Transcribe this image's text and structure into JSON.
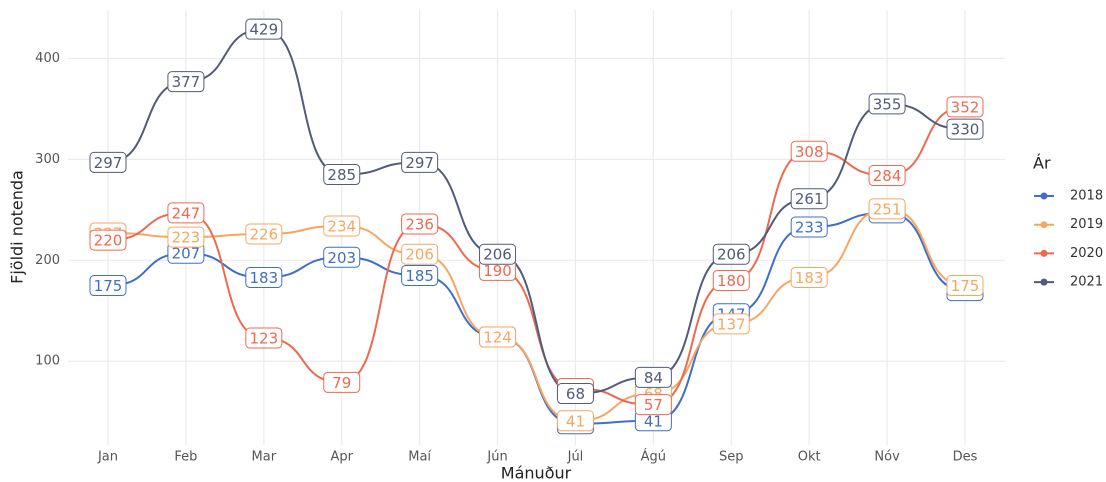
{
  "chart_data": {
    "type": "line",
    "x_label": "Mánuður",
    "y_label": "Fjöldi notenda",
    "legend_title": "Ár",
    "categories": [
      "Jan",
      "Feb",
      "Mar",
      "Apr",
      "Maí",
      "Jún",
      "Júl",
      "Ágú",
      "Sep",
      "Okt",
      "Nóv",
      "Des"
    ],
    "series": [
      {
        "name": "2018",
        "color": "#3f6fc8",
        "values": [
          175,
          207,
          183,
          203,
          185,
          124,
          38,
          41,
          147,
          233,
          247,
          170
        ]
      },
      {
        "name": "2019",
        "color": "#f7a661",
        "values": [
          227,
          223,
          226,
          234,
          206,
          124,
          41,
          68,
          137,
          183,
          251,
          175
        ]
      },
      {
        "name": "2020",
        "color": "#ec6a50",
        "values": [
          220,
          247,
          123,
          79,
          236,
          190,
          73,
          57,
          180,
          308,
          284,
          352
        ]
      },
      {
        "name": "2021",
        "color": "#525b79",
        "values": [
          297,
          377,
          429,
          285,
          297,
          206,
          68,
          84,
          206,
          261,
          355,
          330
        ]
      }
    ],
    "ylim": [
      17,
      448
    ],
    "yticks": [
      100,
      200,
      300,
      400
    ],
    "grid": true,
    "legend": "right"
  }
}
